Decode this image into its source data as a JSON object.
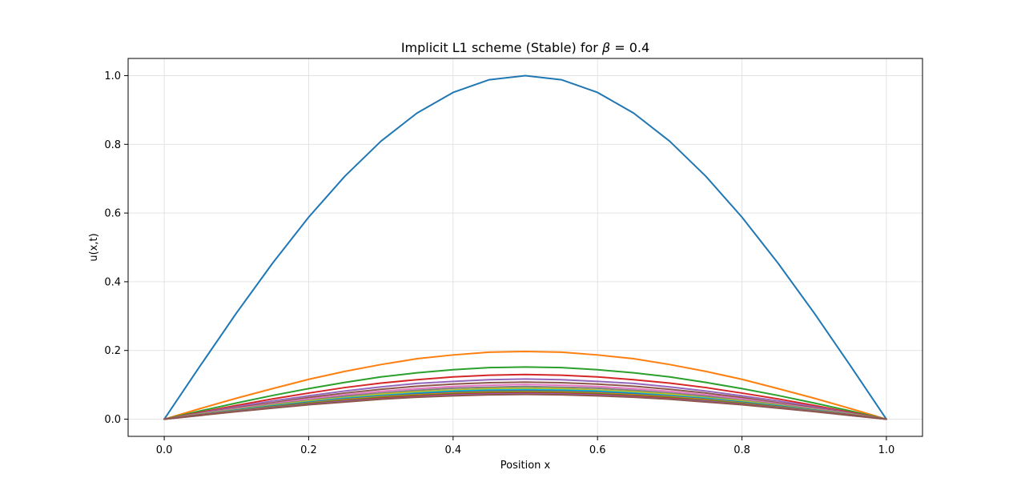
{
  "chart_data": {
    "type": "line",
    "title_prefix": "Implicit L1 scheme (Stable) for ",
    "title_beta": "β",
    "title_suffix": " = 0.4",
    "xlabel": "Position x",
    "ylabel": "u(x,t)",
    "xlim": [
      -0.05,
      1.05
    ],
    "ylim": [
      -0.05,
      1.05
    ],
    "xticks": [
      0.0,
      0.2,
      0.4,
      0.6,
      0.8,
      1.0
    ],
    "xtick_labels": [
      "0.0",
      "0.2",
      "0.4",
      "0.6",
      "0.8",
      "1.0"
    ],
    "yticks": [
      0.0,
      0.2,
      0.4,
      0.6,
      0.8,
      1.0
    ],
    "ytick_labels": [
      "0.0",
      "0.2",
      "0.4",
      "0.6",
      "0.8",
      "1.0"
    ],
    "grid": true,
    "legend": false,
    "x": [
      0.0,
      0.05,
      0.1,
      0.15,
      0.2,
      0.25,
      0.3,
      0.35,
      0.4,
      0.45,
      0.5,
      0.55,
      0.6,
      0.65,
      0.7,
      0.75,
      0.8,
      0.85,
      0.9,
      0.95,
      1.0
    ],
    "series": [
      {
        "color": "#1f77b4",
        "values": [
          0.0,
          0.156,
          0.309,
          0.454,
          0.588,
          0.707,
          0.809,
          0.891,
          0.951,
          0.988,
          1.0,
          0.988,
          0.951,
          0.891,
          0.809,
          0.707,
          0.588,
          0.454,
          0.309,
          0.156,
          0.0
        ]
      },
      {
        "color": "#ff7f0e",
        "values": [
          0.0,
          0.031,
          0.061,
          0.089,
          0.116,
          0.139,
          0.159,
          0.176,
          0.187,
          0.195,
          0.197,
          0.195,
          0.187,
          0.176,
          0.159,
          0.139,
          0.116,
          0.089,
          0.061,
          0.031,
          0.0
        ]
      },
      {
        "color": "#2ca02c",
        "values": [
          0.0,
          0.024,
          0.047,
          0.069,
          0.089,
          0.107,
          0.123,
          0.135,
          0.144,
          0.15,
          0.152,
          0.15,
          0.144,
          0.135,
          0.123,
          0.107,
          0.089,
          0.069,
          0.047,
          0.024,
          0.0
        ]
      },
      {
        "color": "#d62728",
        "values": [
          0.0,
          0.02,
          0.04,
          0.059,
          0.076,
          0.092,
          0.105,
          0.115,
          0.123,
          0.128,
          0.13,
          0.128,
          0.123,
          0.115,
          0.105,
          0.092,
          0.076,
          0.059,
          0.04,
          0.02,
          0.0
        ]
      },
      {
        "color": "#9467bd",
        "values": [
          0.0,
          0.018,
          0.036,
          0.053,
          0.068,
          0.082,
          0.094,
          0.104,
          0.11,
          0.115,
          0.117,
          0.115,
          0.11,
          0.104,
          0.094,
          0.082,
          0.068,
          0.053,
          0.036,
          0.018,
          0.0
        ]
      },
      {
        "color": "#8c564b",
        "values": [
          0.0,
          0.017,
          0.033,
          0.048,
          0.063,
          0.076,
          0.087,
          0.096,
          0.102,
          0.106,
          0.108,
          0.106,
          0.102,
          0.096,
          0.087,
          0.076,
          0.063,
          0.048,
          0.033,
          0.017,
          0.0
        ]
      },
      {
        "color": "#e377c2",
        "values": [
          0.0,
          0.016,
          0.031,
          0.045,
          0.059,
          0.071,
          0.081,
          0.089,
          0.095,
          0.099,
          0.101,
          0.099,
          0.095,
          0.089,
          0.081,
          0.071,
          0.059,
          0.045,
          0.031,
          0.016,
          0.0
        ]
      },
      {
        "color": "#7f7f7f",
        "values": [
          0.0,
          0.015,
          0.029,
          0.043,
          0.055,
          0.067,
          0.076,
          0.084,
          0.09,
          0.093,
          0.095,
          0.093,
          0.09,
          0.084,
          0.076,
          0.067,
          0.055,
          0.043,
          0.029,
          0.015,
          0.0
        ]
      },
      {
        "color": "#bcbd22",
        "values": [
          0.0,
          0.014,
          0.028,
          0.041,
          0.053,
          0.063,
          0.073,
          0.08,
          0.085,
          0.089,
          0.09,
          0.089,
          0.085,
          0.08,
          0.073,
          0.063,
          0.053,
          0.041,
          0.028,
          0.014,
          0.0
        ]
      },
      {
        "color": "#17becf",
        "values": [
          0.0,
          0.013,
          0.027,
          0.039,
          0.05,
          0.061,
          0.069,
          0.076,
          0.082,
          0.085,
          0.086,
          0.085,
          0.082,
          0.076,
          0.069,
          0.061,
          0.05,
          0.039,
          0.027,
          0.013,
          0.0
        ]
      },
      {
        "color": "#1f77b4",
        "values": [
          0.0,
          0.013,
          0.026,
          0.038,
          0.049,
          0.059,
          0.067,
          0.074,
          0.079,
          0.082,
          0.083,
          0.082,
          0.079,
          0.074,
          0.067,
          0.059,
          0.049,
          0.038,
          0.026,
          0.013,
          0.0
        ]
      },
      {
        "color": "#ff7f0e",
        "values": [
          0.0,
          0.012,
          0.025,
          0.036,
          0.047,
          0.057,
          0.065,
          0.071,
          0.076,
          0.079,
          0.08,
          0.079,
          0.076,
          0.071,
          0.065,
          0.057,
          0.047,
          0.036,
          0.025,
          0.012,
          0.0
        ]
      },
      {
        "color": "#2ca02c",
        "values": [
          0.0,
          0.012,
          0.024,
          0.035,
          0.046,
          0.055,
          0.063,
          0.069,
          0.074,
          0.077,
          0.078,
          0.077,
          0.074,
          0.069,
          0.063,
          0.055,
          0.046,
          0.035,
          0.024,
          0.012,
          0.0
        ]
      },
      {
        "color": "#d62728",
        "values": [
          0.0,
          0.012,
          0.023,
          0.034,
          0.044,
          0.053,
          0.061,
          0.067,
          0.072,
          0.075,
          0.076,
          0.075,
          0.072,
          0.067,
          0.061,
          0.053,
          0.044,
          0.034,
          0.023,
          0.012,
          0.0
        ]
      },
      {
        "color": "#9467bd",
        "values": [
          0.0,
          0.011,
          0.023,
          0.033,
          0.043,
          0.052,
          0.059,
          0.065,
          0.07,
          0.073,
          0.074,
          0.073,
          0.07,
          0.065,
          0.059,
          0.052,
          0.043,
          0.033,
          0.023,
          0.011,
          0.0
        ]
      },
      {
        "color": "#8c564b",
        "values": [
          0.0,
          0.011,
          0.022,
          0.032,
          0.042,
          0.05,
          0.058,
          0.064,
          0.068,
          0.071,
          0.072,
          0.071,
          0.068,
          0.064,
          0.058,
          0.05,
          0.042,
          0.032,
          0.022,
          0.011,
          0.0
        ]
      }
    ]
  }
}
